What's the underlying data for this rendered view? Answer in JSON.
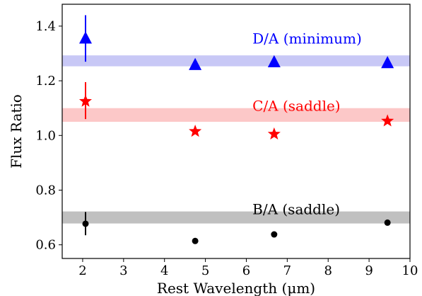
{
  "chart_data": {
    "type": "scatter",
    "xlabel": "Rest Wavelength (μm)",
    "ylabel": "Flux Ratio",
    "xlim": [
      1.5,
      10
    ],
    "ylim": [
      0.55,
      1.48
    ],
    "xticks": [
      2,
      3,
      4,
      5,
      6,
      7,
      8,
      9,
      10
    ],
    "yticks": [
      0.6,
      0.8,
      1.0,
      1.2,
      1.4
    ],
    "ytick_labels": [
      "0.6",
      "0.8",
      "1.0",
      "1.2",
      "1.4"
    ],
    "grid": false,
    "bands": [
      {
        "y_low": 1.253,
        "y_high": 1.293,
        "color": "#c8c8f6"
      },
      {
        "y_low": 1.05,
        "y_high": 1.1,
        "color": "#fcc8c8"
      },
      {
        "y_low": 0.678,
        "y_high": 0.722,
        "color": "#c0c0c0"
      }
    ],
    "series": [
      {
        "annotation": "D/A (minimum)",
        "color": "#0000ff",
        "marker": "triangle",
        "label_pos": [
          6.15,
          1.355
        ],
        "points": [
          {
            "x": 2.07,
            "y": 1.355,
            "yerr_low": 1.27,
            "yerr_high": 1.44
          },
          {
            "x": 4.75,
            "y": 1.258
          },
          {
            "x": 6.68,
            "y": 1.268
          },
          {
            "x": 9.45,
            "y": 1.265
          }
        ]
      },
      {
        "annotation": "C/A (saddle)",
        "color": "#ff0000",
        "marker": "star",
        "label_pos": [
          6.15,
          1.108
        ],
        "points": [
          {
            "x": 2.07,
            "y": 1.125,
            "yerr_low": 1.06,
            "yerr_high": 1.195
          },
          {
            "x": 4.75,
            "y": 1.015
          },
          {
            "x": 6.68,
            "y": 1.005
          },
          {
            "x": 9.45,
            "y": 1.053
          }
        ]
      },
      {
        "annotation": "B/A (saddle)",
        "color": "#000000",
        "marker": "circle",
        "label_pos": [
          6.15,
          0.73
        ],
        "points": [
          {
            "x": 2.07,
            "y": 0.677,
            "yerr_low": 0.635,
            "yerr_high": 0.72
          },
          {
            "x": 4.75,
            "y": 0.614
          },
          {
            "x": 6.68,
            "y": 0.638
          },
          {
            "x": 9.45,
            "y": 0.681
          }
        ]
      }
    ]
  }
}
